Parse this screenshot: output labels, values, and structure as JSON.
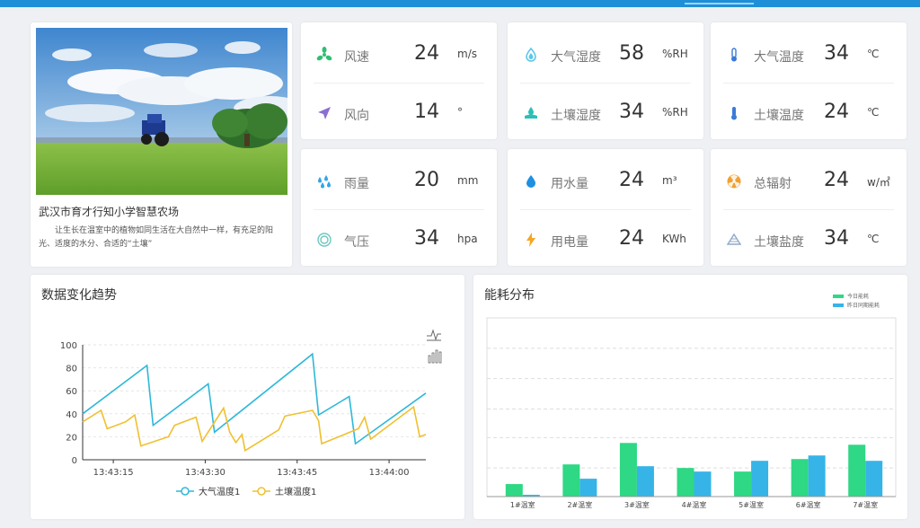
{
  "nav": {
    "items": [
      "",
      "",
      "",
      "",
      "",
      "",
      "",
      ""
    ]
  },
  "farm": {
    "title": "武汉市育才行知小学智慧农场",
    "description": "让生长在温室中的植物如同生活在大自然中一样，有充足的阳光、适度的水分、合适的“土壤”"
  },
  "sensors": {
    "wind_speed": {
      "label": "风速",
      "value": "24",
      "unit": "m/s",
      "icon": "wind-icon",
      "color": "#2fbf71"
    },
    "wind_dir": {
      "label": "风向",
      "value": "14",
      "unit": "°",
      "icon": "navigation-arrow-icon",
      "color": "#8a6fd1"
    },
    "air_humidity": {
      "label": "大气湿度",
      "value": "58",
      "unit": "%RH",
      "icon": "droplet-icon",
      "color": "#5bc7e8"
    },
    "soil_humidity": {
      "label": "土壤湿度",
      "value": "34",
      "unit": "%RH",
      "icon": "soil-moisture-icon",
      "color": "#2cbfb7"
    },
    "air_temp": {
      "label": "大气温度",
      "value": "34",
      "unit": "℃",
      "icon": "thermometer-icon",
      "color": "#3b7bd8"
    },
    "soil_temp": {
      "label": "土壤温度",
      "value": "24",
      "unit": "℃",
      "icon": "thermometer-icon",
      "color": "#3b7bd8"
    },
    "rain": {
      "label": "雨量",
      "value": "20",
      "unit": "mm",
      "icon": "rain-icon",
      "color": "#2fa6e8"
    },
    "pressure": {
      "label": "气压",
      "value": "34",
      "unit": "hpa",
      "icon": "gauge-icon",
      "color": "#6bc7c0"
    },
    "water": {
      "label": "用水量",
      "value": "24",
      "unit": "m³",
      "icon": "water-drop-icon",
      "color": "#1e90e0"
    },
    "power": {
      "label": "用电量",
      "value": "24",
      "unit": "KWh",
      "icon": "lightning-icon",
      "color": "#f5a623"
    },
    "radiation": {
      "label": "总辐射",
      "value": "24",
      "unit": "w/㎡",
      "icon": "radiation-icon",
      "color": "#f0a030"
    },
    "salinity": {
      "label": "土壤盐度",
      "value": "34",
      "unit": "℃",
      "icon": "salinity-icon",
      "color": "#8fa8c8"
    }
  },
  "trend": {
    "title": "数据变化趋势"
  },
  "energy": {
    "title": "能耗分布"
  },
  "chart_data": [
    {
      "type": "line",
      "title": "数据变化趋势",
      "x": [
        "13:43:10",
        "13:43:21",
        "13:43:23",
        "13:43:31",
        "13:43:32",
        "13:43:48",
        "13:43:49",
        "13:43:54",
        "13:43:55",
        "13:44:05"
      ],
      "xticks": [
        "13:43:15",
        "13:43:30",
        "13:43:45",
        "13:44:00"
      ],
      "ylim": [
        0,
        100
      ],
      "yticks": [
        0,
        20,
        40,
        60,
        80,
        100
      ],
      "series": [
        {
          "name": "大气温度1",
          "color": "#2eb8d8",
          "points": [
            [
              0,
              40
            ],
            [
              10.5,
              82
            ],
            [
              11.5,
              30
            ],
            [
              20.5,
              66
            ],
            [
              21.5,
              24
            ],
            [
              37.5,
              92
            ],
            [
              38.5,
              39
            ],
            [
              43.5,
              55
            ],
            [
              44.5,
              14
            ],
            [
              56,
              58
            ]
          ]
        },
        {
          "name": "土壤温度1",
          "color": "#f0c030",
          "points": [
            [
              0,
              33
            ],
            [
              3,
              43
            ],
            [
              4,
              27
            ],
            [
              7,
              33
            ],
            [
              8.5,
              39
            ],
            [
              9.5,
              12
            ],
            [
              14,
              20
            ],
            [
              15,
              30
            ],
            [
              18.5,
              37
            ],
            [
              19.5,
              16
            ],
            [
              23,
              45
            ],
            [
              24,
              24
            ],
            [
              25,
              15
            ],
            [
              26,
              22
            ],
            [
              26.5,
              8
            ],
            [
              32,
              26
            ],
            [
              33,
              38
            ],
            [
              37.5,
              43
            ],
            [
              38.5,
              34
            ],
            [
              39,
              14
            ],
            [
              45,
              27
            ],
            [
              46,
              37
            ],
            [
              47,
              18
            ],
            [
              54,
              46
            ],
            [
              55,
              20
            ],
            [
              56,
              22
            ]
          ]
        }
      ],
      "legend": "bottom",
      "grid": true
    },
    {
      "type": "bar",
      "title": "能耗分布",
      "categories": [
        "1#温室",
        "2#温室",
        "3#温室",
        "4#温室",
        "5#温室",
        "6#温室",
        "7#温室"
      ],
      "ylim": [
        0,
        100
      ],
      "series": [
        {
          "name": "今日能耗",
          "color": "#2ed884",
          "values": [
            7,
            18,
            30,
            16,
            14,
            21,
            29
          ]
        },
        {
          "name": "昨日同期能耗",
          "color": "#36b4e8",
          "values": [
            1,
            10,
            17,
            14,
            20,
            23,
            20
          ]
        }
      ],
      "legend": "top-right",
      "grid": true
    }
  ]
}
